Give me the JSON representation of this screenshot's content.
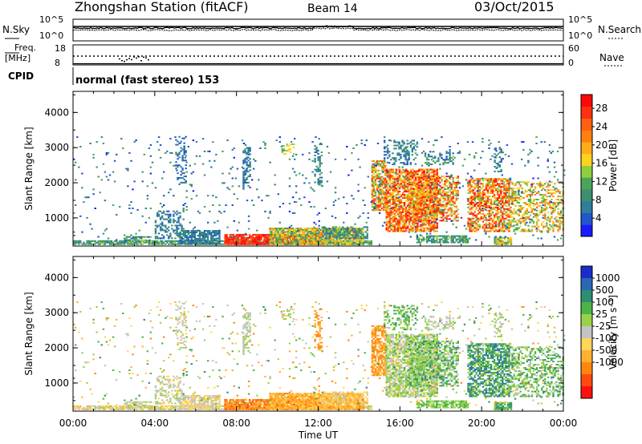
{
  "header": {
    "station": "Zhongshan Station (fitACF)",
    "beam": "Beam 14",
    "date": "03/Oct/2015"
  },
  "strip": {
    "nsky_label": "N.Sky",
    "nsearch_label": "N.Search",
    "noise_ticks_left": [
      "10^5",
      "10^0"
    ],
    "noise_ticks_right": [
      "10^5",
      "10^0"
    ],
    "freq_label_top": "Freq.",
    "freq_label_unit": "[MHz]",
    "freq_ticks": [
      "18",
      "8"
    ],
    "nave_label": "Nave",
    "nave_ticks": [
      "60",
      "0"
    ],
    "cpid_label": "CPID",
    "cpid_text": "normal (fast stereo) 153"
  },
  "chart_data": [
    {
      "type": "heatmap",
      "name": "power",
      "ylabel": "Slant Range [km]",
      "xlabel": "",
      "yticks": [
        "1000",
        "2000",
        "3000",
        "4000"
      ],
      "ylim": [
        200,
        4600
      ],
      "xlim": [
        0,
        24
      ],
      "colorbar": {
        "label": "Power [dB]",
        "ticks": [
          "4",
          "8",
          "12",
          "16",
          "20",
          "24",
          "28"
        ],
        "range": [
          0,
          31
        ],
        "colors": [
          "#1a1aff",
          "#2255cc",
          "#2e7d9a",
          "#3d8f70",
          "#4aa55a",
          "#8fce3f",
          "#ffd21f",
          "#ffab1a",
          "#ff7f0f",
          "#ff5f10",
          "#ff3010",
          "#ff0808"
        ]
      }
    },
    {
      "type": "heatmap",
      "name": "velocity",
      "ylabel": "Slant Range [km]",
      "xlabel": "Time UT",
      "yticks": [
        "1000",
        "2000",
        "3000",
        "4000"
      ],
      "ylim": [
        200,
        4600
      ],
      "xlim": [
        0,
        24
      ],
      "xticks": [
        "00:00",
        "04:00",
        "08:00",
        "12:00",
        "16:00",
        "20:00",
        "00:00"
      ],
      "colorbar": {
        "label": "Velocity [m s⁻¹]",
        "ticks": [
          "1000",
          "500",
          "100",
          "25",
          "-25",
          "-100",
          "-500",
          "-1000"
        ],
        "colors": [
          "#1a2dcc",
          "#2a68b4",
          "#2f8d72",
          "#4cb347",
          "#99d24a",
          "#c3c3c3",
          "#ffd55a",
          "#ffb030",
          "#ff8710",
          "#ff4a10",
          "#ff1010"
        ]
      }
    }
  ]
}
